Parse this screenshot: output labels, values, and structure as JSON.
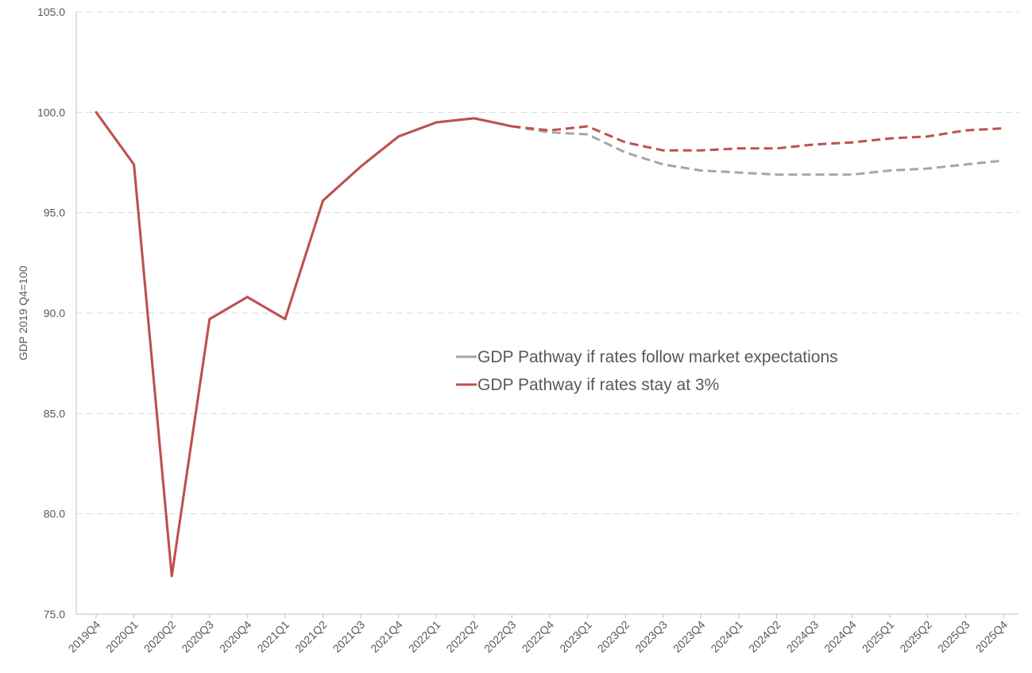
{
  "chart_data": {
    "type": "line",
    "title": "",
    "xlabel": "",
    "ylabel": "GDP 2019 Q4=100",
    "ylim": [
      75,
      105
    ],
    "yticks": [
      75,
      80,
      85,
      90,
      95,
      100,
      105
    ],
    "ytick_labels": [
      "75.0",
      "80.0",
      "85.0",
      "90.0",
      "95.0",
      "100.0",
      "105.0"
    ],
    "grid": true,
    "legend_position": "center-right",
    "categories": [
      "2019Q4",
      "2020Q1",
      "2020Q2",
      "2020Q3",
      "2020Q4",
      "2021Q1",
      "2021Q2",
      "2021Q3",
      "2021Q4",
      "2022Q1",
      "2022Q2",
      "2022Q3",
      "2022Q4",
      "2023Q1",
      "2023Q2",
      "2023Q3",
      "2023Q4",
      "2024Q1",
      "2024Q2",
      "2024Q3",
      "2024Q4",
      "2025Q1",
      "2025Q2",
      "2025Q3",
      "2025Q4"
    ],
    "history_end_index": 11,
    "series": [
      {
        "name": "GDP Pathway if rates follow market expectations",
        "color": "#a6a6a6",
        "values": [
          100.0,
          97.4,
          76.9,
          89.7,
          90.8,
          89.7,
          95.6,
          97.3,
          98.8,
          99.5,
          99.7,
          99.3,
          99.0,
          98.9,
          98.0,
          97.4,
          97.1,
          97.0,
          96.9,
          96.9,
          96.9,
          97.1,
          97.2,
          97.4,
          97.6
        ]
      },
      {
        "name": "GDP Pathway if rates stay at 3%",
        "color": "#c0504d",
        "values": [
          100.0,
          97.4,
          76.9,
          89.7,
          90.8,
          89.7,
          95.6,
          97.3,
          98.8,
          99.5,
          99.7,
          99.3,
          99.1,
          99.3,
          98.5,
          98.1,
          98.1,
          98.2,
          98.2,
          98.4,
          98.5,
          98.7,
          98.8,
          99.1,
          99.2
        ]
      }
    ]
  }
}
